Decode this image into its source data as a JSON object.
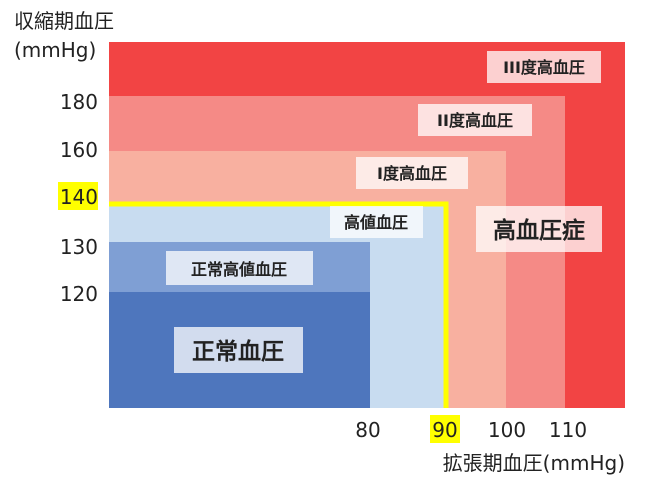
{
  "chart_data": {
    "type": "region",
    "title": "",
    "ylabel_line1": "収縮期血圧",
    "ylabel_line2": "(mmHg)",
    "xlabel": "拡張期血圧(mmHg)",
    "y_ticks": [
      "180",
      "160",
      "140",
      "130",
      "120"
    ],
    "x_ticks": [
      "80",
      "90",
      "100",
      "110"
    ],
    "highlight_y_tick": "140",
    "highlight_x_tick": "90",
    "highlight_color": "#ffff00",
    "zones": [
      {
        "label": "III度高血圧",
        "color": "#f24444",
        "dbp_max": null,
        "sbp_max": null
      },
      {
        "label": "II度高血圧",
        "color": "#f58a86",
        "dbp_max": 110,
        "sbp_max": 180
      },
      {
        "label": "I度高血圧",
        "color": "#f8b0a0",
        "dbp_max": 100,
        "sbp_max": 160
      },
      {
        "label": "高値血圧",
        "color": "#c8dcf0",
        "dbp_max": 90,
        "sbp_max": 140
      },
      {
        "label": "正常高値血圧",
        "color": "#7f9fd4",
        "dbp_max": 80,
        "sbp_max": 130
      },
      {
        "label": "正常血圧",
        "color": "#4e76bd",
        "dbp_max": 80,
        "sbp_max": 120
      }
    ],
    "hypertension_label": "高血圧症",
    "hypertension_threshold": {
      "sbp": 140,
      "dbp": 90,
      "color": "#ffff00"
    }
  }
}
